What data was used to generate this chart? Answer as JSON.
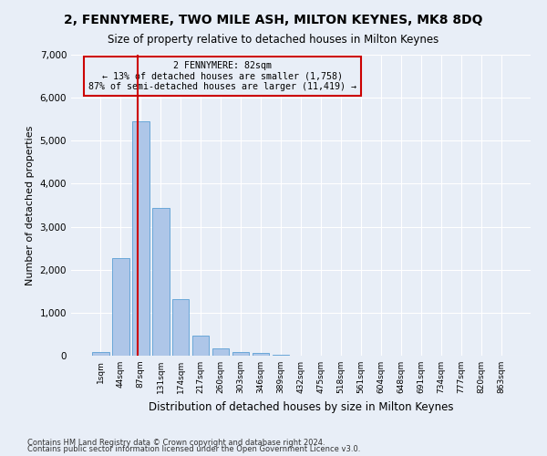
{
  "title": "2, FENNYMERE, TWO MILE ASH, MILTON KEYNES, MK8 8DQ",
  "subtitle": "Size of property relative to detached houses in Milton Keynes",
  "xlabel": "Distribution of detached houses by size in Milton Keynes",
  "ylabel": "Number of detached properties",
  "footnote1": "Contains HM Land Registry data © Crown copyright and database right 2024.",
  "footnote2": "Contains public sector information licensed under the Open Government Licence v3.0.",
  "annotation_line1": "2 FENNYMERE: 82sqm",
  "annotation_line2": "← 13% of detached houses are smaller (1,758)",
  "annotation_line3": "87% of semi-detached houses are larger (11,419) →",
  "bar_color": "#aec6e8",
  "bar_edge_color": "#5a9fd4",
  "redline_color": "#cc0000",
  "annotation_box_edge": "#cc0000",
  "background_color": "#e8eef7",
  "categories": [
    "1sqm",
    "44sqm",
    "87sqm",
    "131sqm",
    "174sqm",
    "217sqm",
    "260sqm",
    "303sqm",
    "346sqm",
    "389sqm",
    "432sqm",
    "475sqm",
    "518sqm",
    "561sqm",
    "604sqm",
    "648sqm",
    "691sqm",
    "734sqm",
    "777sqm",
    "820sqm",
    "863sqm"
  ],
  "values": [
    75,
    2280,
    5450,
    3430,
    1310,
    470,
    160,
    90,
    60,
    30,
    0,
    0,
    0,
    0,
    0,
    0,
    0,
    0,
    0,
    0,
    0
  ],
  "ylim": [
    0,
    7000
  ],
  "yticks": [
    0,
    1000,
    2000,
    3000,
    4000,
    5000,
    6000,
    7000
  ],
  "redline_x": 1.85,
  "title_fontsize": 10,
  "subtitle_fontsize": 8.5,
  "ylabel_fontsize": 8,
  "xlabel_fontsize": 8.5,
  "footnote_fontsize": 6.0
}
